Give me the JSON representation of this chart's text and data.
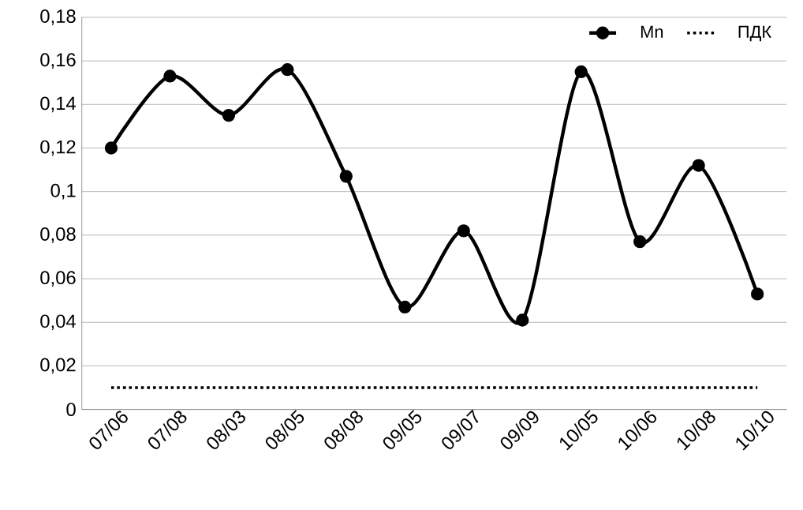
{
  "chart_data": {
    "type": "line",
    "categories": [
      "07/06",
      "07/08",
      "08/03",
      "08/05",
      "08/08",
      "09/05",
      "09/07",
      "09/09",
      "10/05",
      "10/06",
      "10/08",
      "10/10"
    ],
    "series": [
      {
        "name": "Mn",
        "color": "#000000",
        "marker": "circle",
        "line_style": "solid",
        "values": [
          0.12,
          0.153,
          0.135,
          0.156,
          0.107,
          0.047,
          0.082,
          0.041,
          0.155,
          0.077,
          0.112,
          0.053
        ]
      },
      {
        "name": "ПДК",
        "color": "#000000",
        "marker": "none",
        "line_style": "dotted",
        "values": [
          0.01,
          0.01,
          0.01,
          0.01,
          0.01,
          0.01,
          0.01,
          0.01,
          0.01,
          0.01,
          0.01,
          0.01
        ]
      }
    ],
    "ylim": [
      0,
      0.18
    ],
    "yticks": [
      0,
      {
        "value": 0.02,
        "label": "0,02"
      },
      {
        "value": 0.04,
        "label": "0,04"
      },
      {
        "value": 0.06,
        "label": "0,06"
      },
      {
        "value": 0.08,
        "label": "0,08"
      },
      {
        "value": 0.1,
        "label": "0,1"
      },
      {
        "value": 0.12,
        "label": "0,12"
      },
      {
        "value": 0.14,
        "label": "0,14"
      },
      {
        "value": 0.16,
        "label": "0,16"
      },
      {
        "value": 0.18,
        "label": "0,18"
      }
    ],
    "grid": "y",
    "legend": "top right"
  }
}
